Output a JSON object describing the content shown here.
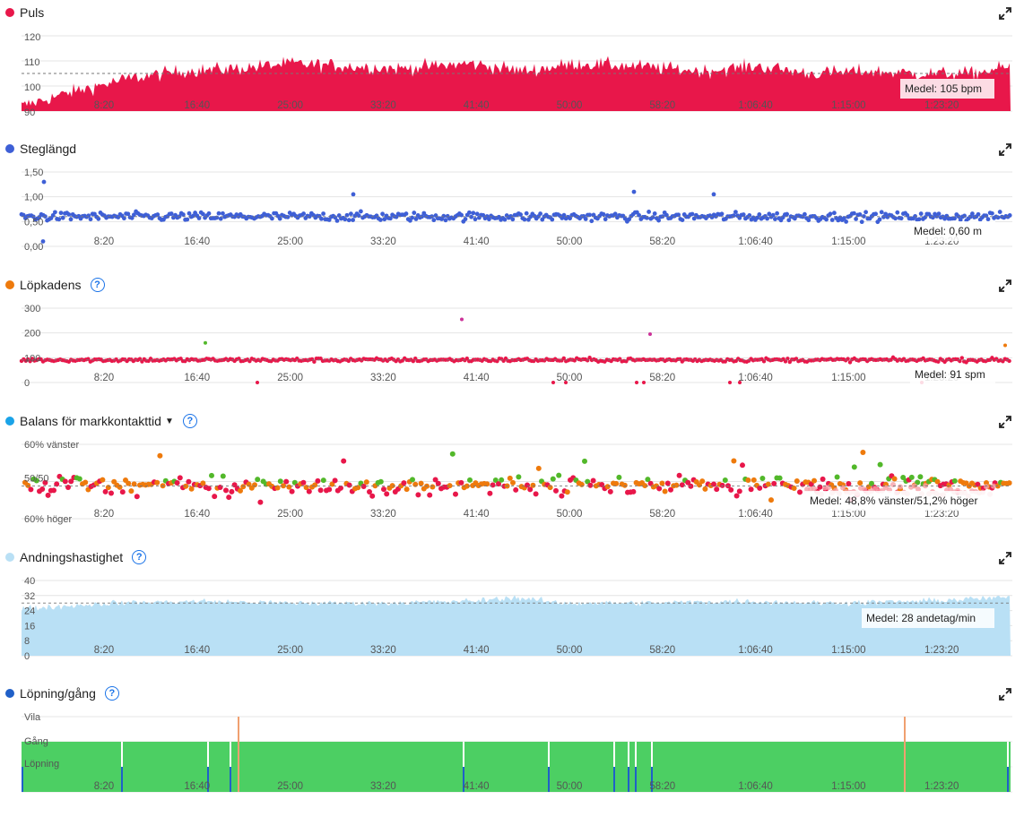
{
  "colors": {
    "puls": "#e8174a",
    "steglangd": "#3e5fd6",
    "kadens": "#ee7a0c",
    "balans": "#1aa3e8",
    "andning": "#b9e0f5",
    "lopning": "#2060c8",
    "green": "#4ccf63",
    "balance_red": "#e8174a",
    "balance_orange": "#ee7a0c",
    "balance_green": "#52b82a",
    "pink": "#f6a0a8",
    "vila_line": "#f0a070"
  },
  "x_ticks": [
    "8:20",
    "16:40",
    "25:00",
    "33:20",
    "41:40",
    "50:00",
    "58:20",
    "1:06:40",
    "1:15:00",
    "1:23:20"
  ],
  "chart_data": [
    {
      "id": "puls",
      "title": "Puls",
      "type": "area",
      "help_icon": false,
      "expand_icon": "expand-icon",
      "y_ticks": [
        "120",
        "110",
        "100",
        "90"
      ],
      "ylim": [
        90,
        120
      ],
      "average_value": 105,
      "average_label": "Medel: 105 bpm",
      "profile": [
        [
          0,
          92
        ],
        [
          60,
          98
        ],
        [
          120,
          103
        ],
        [
          180,
          106
        ],
        [
          240,
          107
        ],
        [
          300,
          109
        ],
        [
          360,
          108
        ],
        [
          420,
          107
        ],
        [
          500,
          109
        ],
        [
          560,
          106
        ],
        [
          620,
          109
        ],
        [
          680,
          108
        ],
        [
          760,
          106
        ],
        [
          820,
          108
        ],
        [
          880,
          105
        ],
        [
          940,
          106
        ],
        [
          1000,
          105
        ],
        [
          1060,
          105
        ],
        [
          1120,
          109
        ],
        [
          1126,
          108
        ]
      ]
    },
    {
      "id": "steglangd",
      "title": "Steglängd",
      "type": "scatter",
      "help_icon": false,
      "expand_icon": "expand-icon",
      "y_ticks": [
        "1,50",
        "1,00",
        "0,50",
        "0,00"
      ],
      "ylim": [
        0,
        1.5
      ],
      "average_value": 0.6,
      "average_label": "Medel: 0,60 m",
      "central": 0.6,
      "spread": 0.12,
      "outliers": [
        [
          25,
          1.3
        ],
        [
          370,
          1.05
        ],
        [
          683,
          1.1
        ],
        [
          772,
          1.05
        ],
        [
          24,
          0.1
        ],
        [
          1126,
          0.5
        ]
      ]
    },
    {
      "id": "kadens",
      "title": "Löpkadens",
      "type": "scatter",
      "help_icon": true,
      "expand_icon": "expand-icon",
      "y_ticks": [
        "300",
        "200",
        "100",
        "0"
      ],
      "ylim": [
        0,
        300
      ],
      "average_value": 91,
      "average_label": "Medel: 91 spm",
      "central": 91,
      "spread": 12,
      "outliers": [
        [
          205,
          160
        ],
        [
          491,
          255
        ],
        [
          701,
          195
        ],
        [
          1097,
          150
        ],
        [
          263,
          0
        ],
        [
          593,
          0
        ],
        [
          607,
          0
        ],
        [
          686,
          0
        ],
        [
          694,
          0
        ],
        [
          790,
          0
        ],
        [
          801,
          0
        ],
        [
          1004,
          0
        ],
        [
          1126,
          0
        ]
      ]
    },
    {
      "id": "balans",
      "title": "Balans för markkontakttid",
      "type": "scatter",
      "help_icon": true,
      "dropdown": true,
      "expand_icon": "expand-icon",
      "y_ticks": [
        "60% vänster",
        "50/50",
        "60% höger"
      ],
      "ylim": [
        40,
        60
      ],
      "average_value": 48.8,
      "average_label": "Medel: 48,8% vänster/51,2% höger"
    },
    {
      "id": "andning",
      "title": "Andningshastighet",
      "type": "area",
      "help_icon": true,
      "expand_icon": "expand-icon",
      "y_ticks": [
        "40",
        "32",
        "24",
        "16",
        "8",
        "0"
      ],
      "ylim": [
        0,
        40
      ],
      "average_value": 28,
      "average_label": "Medel: 28 andetag/min",
      "profile": [
        [
          0,
          25
        ],
        [
          100,
          28
        ],
        [
          200,
          29
        ],
        [
          300,
          28
        ],
        [
          400,
          28
        ],
        [
          500,
          29
        ],
        [
          550,
          31
        ],
        [
          600,
          28
        ],
        [
          700,
          28
        ],
        [
          800,
          29
        ],
        [
          900,
          28
        ],
        [
          1000,
          29
        ],
        [
          1100,
          31
        ],
        [
          1126,
          31
        ]
      ]
    },
    {
      "id": "lopning",
      "title": "Löpning/gång",
      "type": "area",
      "help_icon": true,
      "expand_icon": "expand-icon",
      "y_ticks": [
        "Vila",
        "Gång",
        "Löpning"
      ],
      "gaps": [
        112,
        208,
        233,
        493,
        588,
        661,
        677,
        685,
        703,
        1100,
        1120
      ],
      "vila_marks": [
        265,
        1008
      ]
    }
  ]
}
